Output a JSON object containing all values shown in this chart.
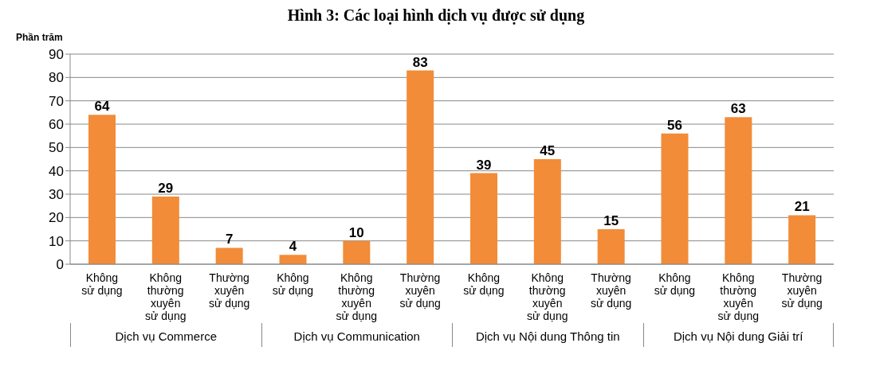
{
  "chart_data": {
    "type": "bar",
    "title": "Hình 3: Các loại hình dịch vụ được sử dụng",
    "ylabel": "Phần trăm",
    "categories": [
      "Không sử dụng",
      "Không thường xuyên sử dụng",
      "Thường xuyên sử dụng",
      "Không sử dụng",
      "Không thường xuyên sử dụng",
      "Thường xuyên sử dụng",
      "Không sử dụng",
      "Không thường xuyên sử dụng",
      "Thường xuyên sử dụng",
      "Không sử dụng",
      "Không thường xuyên sử dụng",
      "Thường xuyên sử dụng"
    ],
    "values": [
      64,
      29,
      7,
      4,
      10,
      83,
      39,
      45,
      15,
      56,
      63,
      21
    ],
    "color": "#f28c38",
    "ylim": [
      0,
      90
    ],
    "yticks": [
      0,
      10,
      20,
      30,
      40,
      50,
      60,
      70,
      80,
      90
    ],
    "grid": "y",
    "data_labels": true,
    "legend": false,
    "annotations": [
      "Dịch vụ Commerce",
      "Dịch vụ Communication",
      "Dịch vụ Nội dung Thông tin",
      "Dịch vụ Nội dung Giải trí"
    ]
  }
}
